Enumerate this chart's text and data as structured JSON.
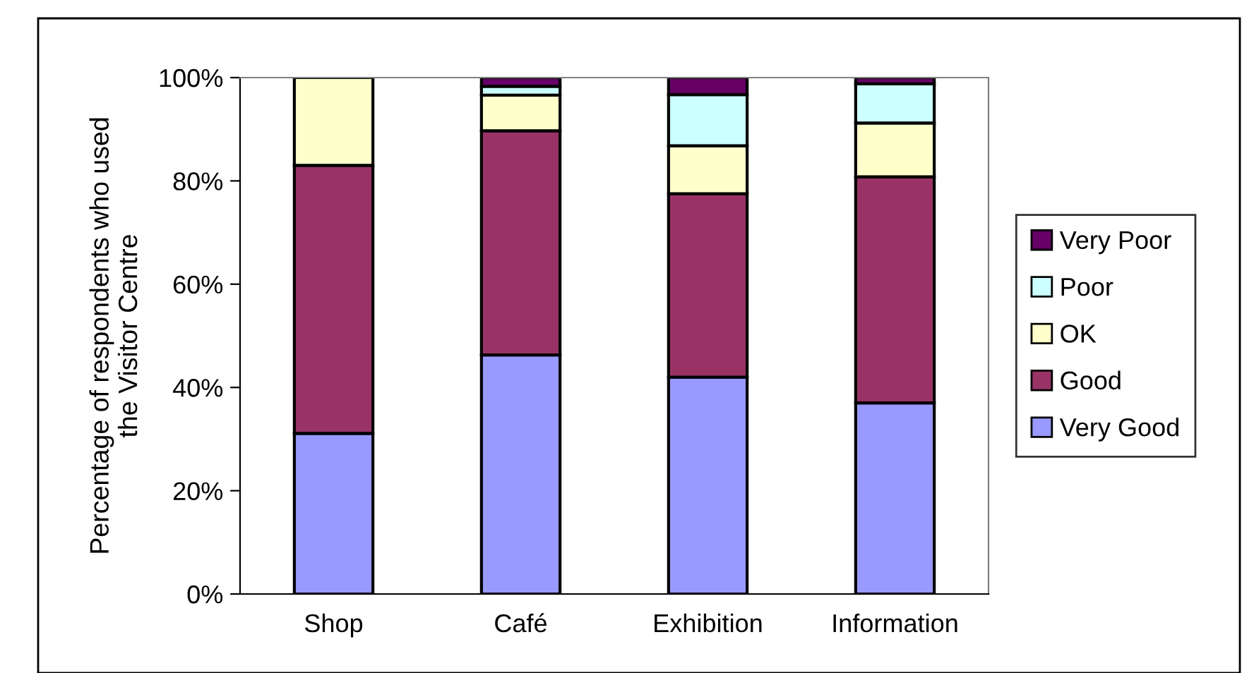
{
  "chart_data": {
    "type": "bar",
    "stacked": true,
    "ylabel": "Percentage of respondents who used\nthe Visitor Centre",
    "categories": [
      "Shop",
      "Café",
      "Exhibition",
      "Information"
    ],
    "series": [
      {
        "name": "Very Good",
        "color": "#9999ff",
        "values": [
          31.1,
          46.3,
          42.0,
          37.0
        ]
      },
      {
        "name": "Good",
        "color": "#993366",
        "values": [
          51.9,
          43.4,
          35.5,
          43.8
        ]
      },
      {
        "name": "OK",
        "color": "#ffffcc",
        "values": [
          17.0,
          6.9,
          9.3,
          10.4
        ]
      },
      {
        "name": "Poor",
        "color": "#ccffff",
        "values": [
          null,
          1.7,
          9.9,
          7.6
        ]
      },
      {
        "name": "Very Poor",
        "color": "#660066",
        "values": [
          null,
          1.7,
          3.3,
          1.2
        ]
      }
    ],
    "ylim": [
      0,
      100
    ],
    "yticks": [
      {
        "value": 0,
        "label": "0%"
      },
      {
        "value": 20,
        "label": "20%"
      },
      {
        "value": 40,
        "label": "40%"
      },
      {
        "value": 60,
        "label": "60%"
      },
      {
        "value": 80,
        "label": "80%"
      },
      {
        "value": 100,
        "label": "100%"
      }
    ],
    "grid": false,
    "legend": "right"
  }
}
